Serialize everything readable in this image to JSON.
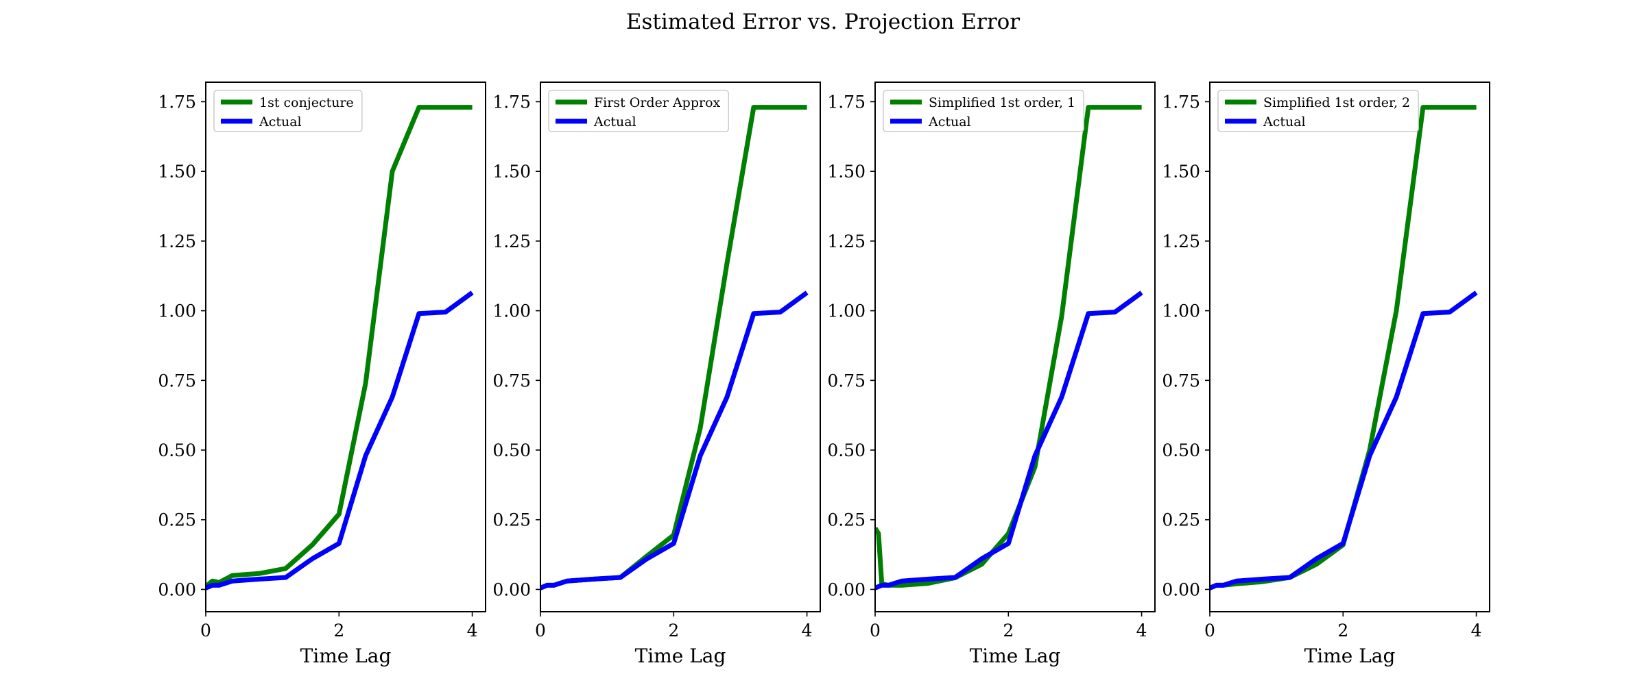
{
  "figure": {
    "title": "Estimated Error vs. Projection Error"
  },
  "colors": {
    "estimate": "#008000",
    "actual": "#0000ff"
  },
  "chart_data": [
    {
      "type": "line",
      "xlabel": "Time Lag",
      "xlim": [
        0,
        4.2
      ],
      "ylim": [
        -0.08,
        1.82
      ],
      "xticks": [
        0,
        2,
        4
      ],
      "yticks": [
        0.0,
        0.25,
        0.5,
        0.75,
        1.0,
        1.25,
        1.5,
        1.75
      ],
      "xtick_labels": [
        "0",
        "2",
        "4"
      ],
      "ytick_labels": [
        "0.00",
        "0.25",
        "0.50",
        "0.75",
        "1.00",
        "1.25",
        "1.50",
        "1.75"
      ],
      "legend_position": "top-left",
      "series": [
        {
          "name": "1st conjecture",
          "color": "#008000",
          "x": [
            0,
            0.1,
            0.2,
            0.4,
            0.8,
            1.2,
            1.6,
            2.0,
            2.4,
            2.8,
            3.2,
            3.6,
            4.0
          ],
          "y": [
            0.01,
            0.03,
            0.025,
            0.05,
            0.057,
            0.075,
            0.16,
            0.27,
            0.74,
            1.5,
            1.73,
            1.73,
            1.73
          ]
        },
        {
          "name": "Actual",
          "color": "#0000ff",
          "x": [
            0,
            0.1,
            0.2,
            0.4,
            0.8,
            1.2,
            1.6,
            2.0,
            2.4,
            2.8,
            3.2,
            3.6,
            4.0
          ],
          "y": [
            0.005,
            0.015,
            0.015,
            0.03,
            0.037,
            0.043,
            0.11,
            0.165,
            0.48,
            0.69,
            0.99,
            0.995,
            1.065
          ]
        }
      ]
    },
    {
      "type": "line",
      "xlabel": "Time Lag",
      "xlim": [
        0,
        4.2
      ],
      "ylim": [
        -0.08,
        1.82
      ],
      "xticks": [
        0,
        2,
        4
      ],
      "yticks": [
        0.0,
        0.25,
        0.5,
        0.75,
        1.0,
        1.25,
        1.5,
        1.75
      ],
      "xtick_labels": [
        "0",
        "2",
        "4"
      ],
      "ytick_labels": [
        "0.00",
        "0.25",
        "0.50",
        "0.75",
        "1.00",
        "1.25",
        "1.50",
        "1.75"
      ],
      "legend_position": "top-left",
      "series": [
        {
          "name": "First Order Approx",
          "color": "#008000",
          "x": [
            0,
            0.1,
            0.2,
            0.4,
            0.8,
            1.2,
            1.6,
            2.0,
            2.4,
            2.8,
            3.2,
            3.6,
            4.0
          ],
          "y": [
            0.005,
            0.015,
            0.015,
            0.03,
            0.037,
            0.043,
            0.12,
            0.195,
            0.58,
            1.17,
            1.73,
            1.73,
            1.73
          ]
        },
        {
          "name": "Actual",
          "color": "#0000ff",
          "x": [
            0,
            0.1,
            0.2,
            0.4,
            0.8,
            1.2,
            1.6,
            2.0,
            2.4,
            2.8,
            3.2,
            3.6,
            4.0
          ],
          "y": [
            0.005,
            0.015,
            0.015,
            0.03,
            0.037,
            0.043,
            0.11,
            0.165,
            0.48,
            0.69,
            0.99,
            0.995,
            1.065
          ]
        }
      ]
    },
    {
      "type": "line",
      "xlabel": "Time Lag",
      "xlim": [
        0,
        4.2
      ],
      "ylim": [
        -0.08,
        1.82
      ],
      "xticks": [
        0,
        2,
        4
      ],
      "yticks": [
        0.0,
        0.25,
        0.5,
        0.75,
        1.0,
        1.25,
        1.5,
        1.75
      ],
      "xtick_labels": [
        "0",
        "2",
        "4"
      ],
      "ytick_labels": [
        "0.00",
        "0.25",
        "0.50",
        "0.75",
        "1.00",
        "1.25",
        "1.50",
        "1.75"
      ],
      "legend_position": "top-left",
      "series": [
        {
          "name": "Simplified 1st order, 1",
          "color": "#008000",
          "x": [
            0,
            0.05,
            0.1,
            0.2,
            0.4,
            0.8,
            1.2,
            1.6,
            2.0,
            2.4,
            2.8,
            3.2,
            3.6,
            4.0
          ],
          "y": [
            0.22,
            0.2,
            0.02,
            0.015,
            0.015,
            0.022,
            0.042,
            0.09,
            0.2,
            0.44,
            0.98,
            1.73,
            1.73,
            1.73
          ]
        },
        {
          "name": "Actual",
          "color": "#0000ff",
          "x": [
            0,
            0.1,
            0.2,
            0.4,
            0.8,
            1.2,
            1.6,
            2.0,
            2.4,
            2.8,
            3.2,
            3.6,
            4.0
          ],
          "y": [
            0.005,
            0.015,
            0.015,
            0.03,
            0.037,
            0.043,
            0.11,
            0.165,
            0.48,
            0.69,
            0.99,
            0.995,
            1.065
          ]
        }
      ]
    },
    {
      "type": "line",
      "xlabel": "Time Lag",
      "xlim": [
        0,
        4.2
      ],
      "ylim": [
        -0.08,
        1.82
      ],
      "xticks": [
        0,
        2,
        4
      ],
      "yticks": [
        0.0,
        0.25,
        0.5,
        0.75,
        1.0,
        1.25,
        1.5,
        1.75
      ],
      "xtick_labels": [
        "0",
        "2",
        "4"
      ],
      "ytick_labels": [
        "0.00",
        "0.25",
        "0.50",
        "0.75",
        "1.00",
        "1.25",
        "1.50",
        "1.75"
      ],
      "legend_position": "top-left",
      "series": [
        {
          "name": "Simplified 1st order, 2",
          "color": "#008000",
          "x": [
            0,
            0.1,
            0.2,
            0.4,
            0.8,
            1.2,
            1.6,
            2.0,
            2.4,
            2.8,
            3.2,
            3.6,
            4.0
          ],
          "y": [
            0.005,
            0.015,
            0.015,
            0.02,
            0.028,
            0.043,
            0.09,
            0.16,
            0.5,
            1.0,
            1.73,
            1.73,
            1.73
          ]
        },
        {
          "name": "Actual",
          "color": "#0000ff",
          "x": [
            0,
            0.1,
            0.2,
            0.4,
            0.8,
            1.2,
            1.6,
            2.0,
            2.4,
            2.8,
            3.2,
            3.6,
            4.0
          ],
          "y": [
            0.005,
            0.015,
            0.015,
            0.03,
            0.037,
            0.043,
            0.11,
            0.165,
            0.48,
            0.69,
            0.99,
            0.995,
            1.065
          ]
        }
      ]
    }
  ]
}
